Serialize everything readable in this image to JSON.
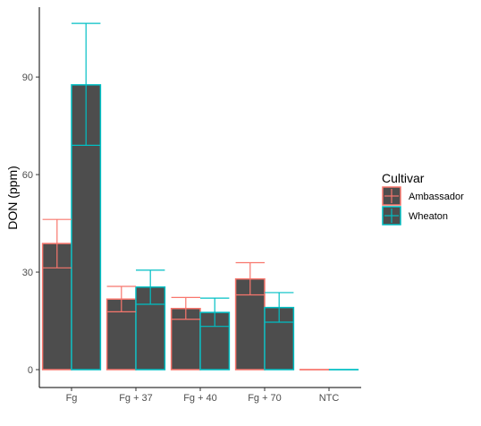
{
  "chart_data": {
    "type": "bar",
    "categories": [
      "Fg",
      "Fg + 37",
      "Fg + 40",
      "Fg + 70",
      "NTC"
    ],
    "series": [
      {
        "name": "Ambassador",
        "values": [
          38.8,
          21.7,
          18.8,
          27.9,
          0
        ],
        "error_low": [
          31.3,
          17.8,
          15.5,
          23.0,
          0
        ],
        "error_high": [
          46.2,
          25.6,
          22.2,
          32.9,
          0
        ],
        "color": "#F8766D"
      },
      {
        "name": "Wheaton",
        "values": [
          87.6,
          25.4,
          17.6,
          19.1,
          0
        ],
        "error_low": [
          69.0,
          20.1,
          13.3,
          14.6,
          0
        ],
        "error_high": [
          106.5,
          30.6,
          22.0,
          23.7,
          0
        ],
        "color": "#00BFC4"
      }
    ],
    "bar_fill": "#4d4d4d",
    "xlabel": "",
    "ylabel": "DON (ppm)",
    "yticks": [
      0,
      30,
      60,
      90
    ],
    "ylim": [
      -5.5,
      111.5
    ],
    "grid": false,
    "legend": {
      "title": "Cultivar",
      "position": "right"
    }
  }
}
